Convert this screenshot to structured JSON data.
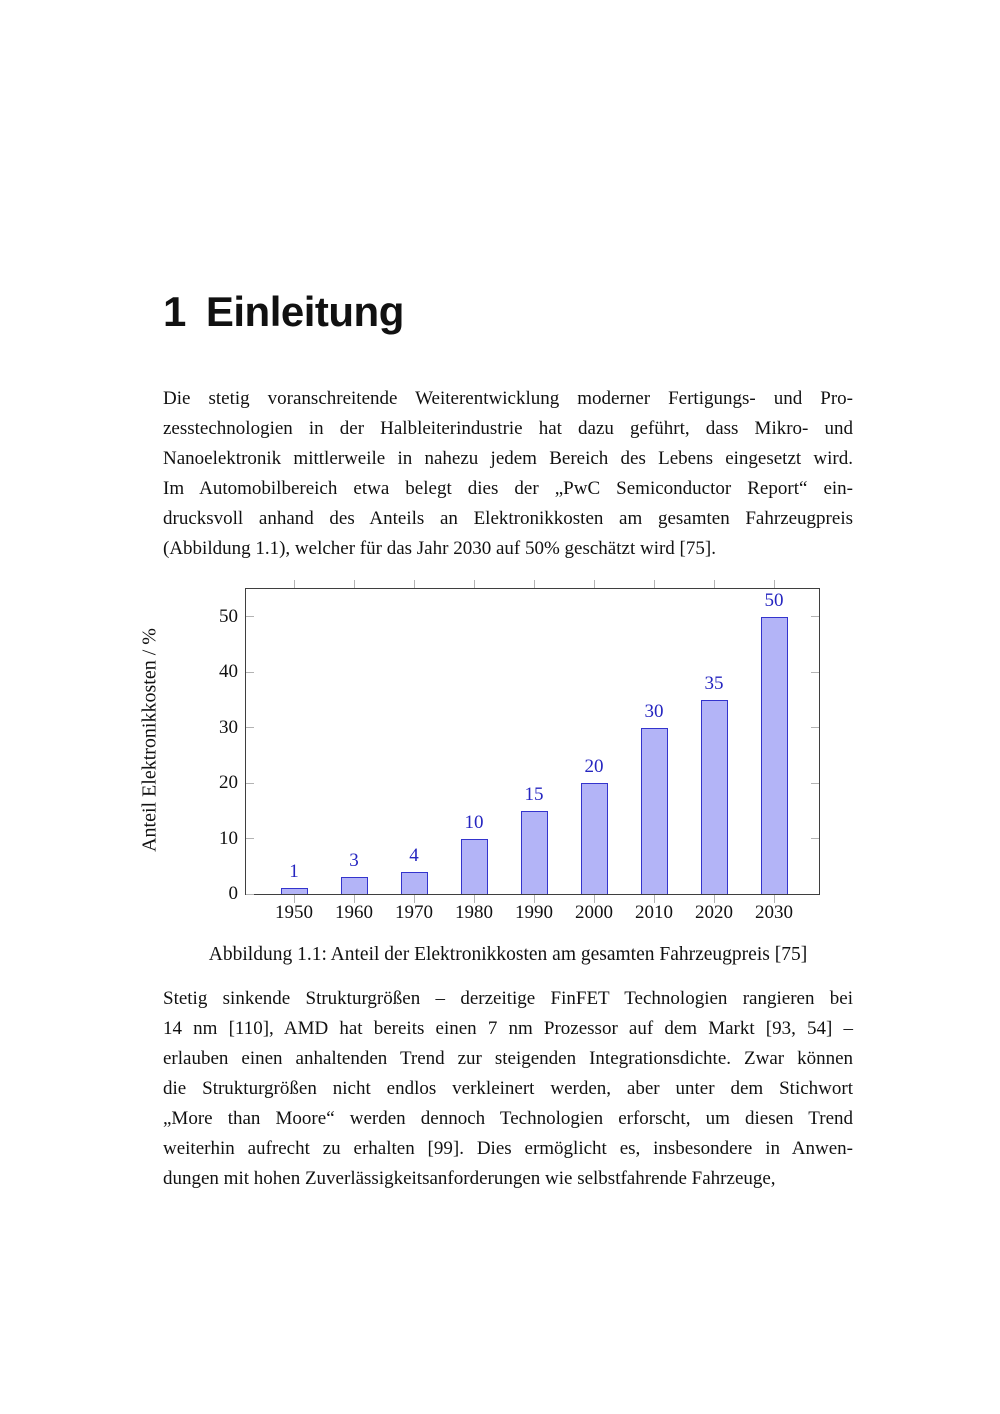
{
  "page": {
    "heading": {
      "number": "1",
      "title": "Einleitung"
    },
    "paragraphs": [
      {
        "lines": [
          "Die stetig voranschreitende Weiterentwicklung moderner Fertigungs- und Pro-",
          "zesstechnologien in der Halbleiterindustrie hat dazu geführt, dass Mikro- und",
          "Nanoelektronik mittlerweile in nahezu jedem Bereich des Lebens eingesetzt wird.",
          "Im Automobilbereich etwa belegt dies der „PwC Semiconductor Report“ ein-",
          "drucksvoll anhand des Anteils an Elektronikkosten am gesamten Fahrzeugpreis",
          "(Abbildung 1.1), welcher für das Jahr 2030 auf 50% geschätzt wird [75]."
        ]
      },
      {
        "lines": [
          "Stetig sinkende Strukturgrößen – derzeitige FinFET Technologien rangieren bei",
          "14 nm [110], AMD hat bereits einen 7 nm Prozessor auf dem Markt [93, 54] –",
          "erlauben einen anhaltenden Trend zur steigenden Integrationsdichte. Zwar können",
          "die Strukturgrößen nicht endlos verkleinert werden, aber unter dem Stichwort",
          "„More than Moore“ werden dennoch Technologien erforscht, um diesen Trend",
          "weiterhin aufrecht zu erhalten [99]. Dies ermöglicht es, insbesondere in Anwen-",
          "dungen mit hohen Zuverlässigkeitsanforderungen wie selbstfahrende Fahrzeuge,"
        ]
      }
    ],
    "figure": {
      "caption": "Abbildung 1.1: Anteil der Elektronikkosten am gesamten Fahrzeugpreis [75]"
    }
  },
  "chart_data": {
    "type": "bar",
    "title": "",
    "xlabel": "",
    "ylabel": "Anteil Elektronikkosten / %",
    "categories": [
      "1950",
      "1960",
      "1970",
      "1980",
      "1990",
      "2000",
      "2010",
      "2020",
      "2030"
    ],
    "values": [
      1,
      3,
      4,
      10,
      15,
      20,
      30,
      35,
      50
    ],
    "value_labels": [
      "1",
      "3",
      "4",
      "10",
      "15",
      "20",
      "30",
      "35",
      "50"
    ],
    "yticks": [
      0,
      10,
      20,
      30,
      40,
      50
    ],
    "ylim": [
      0,
      55
    ],
    "grid": false,
    "legend": null,
    "colors": {
      "bar_fill": "#b3b4f7",
      "bar_border": "#3434cd",
      "value_label": "#2525c0",
      "axis_frame": "#3f3f3f",
      "tick": "#b3b3b3"
    }
  }
}
